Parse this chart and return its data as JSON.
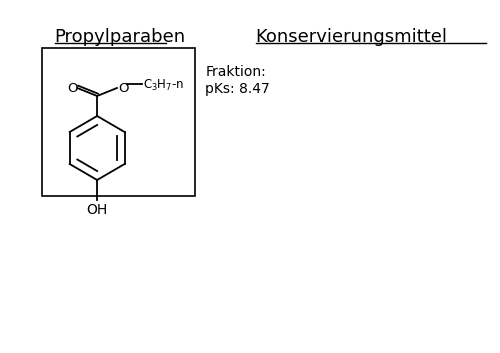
{
  "background_color": "#ffffff",
  "title_left": "Propylparaben",
  "title_right": "Konservierungsmittel",
  "fraktion_text": "Fraktion:",
  "pks_text": "pKs: 8.47",
  "box_color": "#000000",
  "text_color": "#000000",
  "fig_width": 5.0,
  "fig_height": 3.53
}
